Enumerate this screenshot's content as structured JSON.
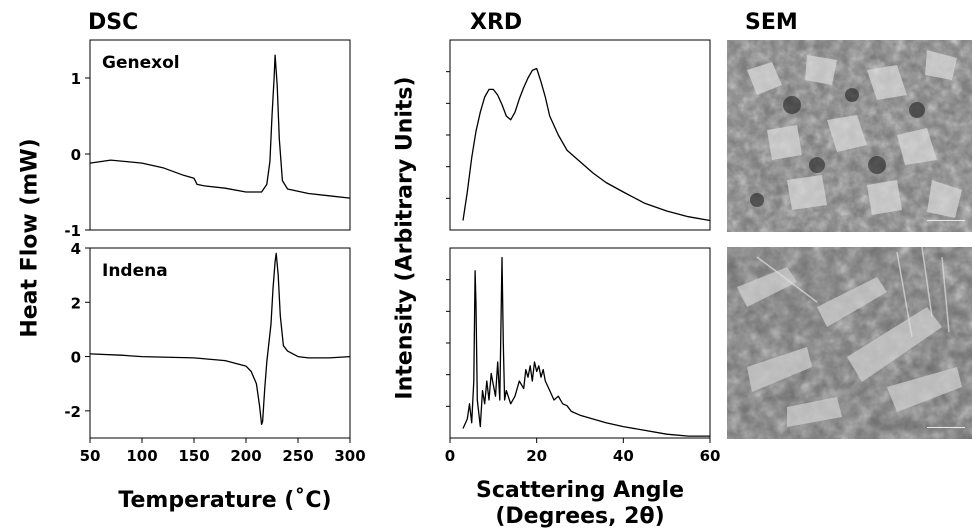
{
  "titles": {
    "dsc": "DSC",
    "xrd": "XRD",
    "sem": "SEM"
  },
  "dsc_ylabel": "Heat Flow (mW)",
  "dsc_xlabel": "Temperature (˚C)",
  "xrd_ylabel": "Intensity (Arbitrary Units)",
  "xrd_xlabel_line1": "Scattering Angle",
  "xrd_xlabel_line2": "(Degrees, 2θ)",
  "chart_data": [
    {
      "type": "line",
      "panel": "DSC top",
      "series": [
        {
          "name": "Genexol",
          "x": [
            50,
            70,
            100,
            120,
            140,
            150,
            153,
            160,
            180,
            200,
            215,
            220,
            223,
            225,
            227,
            228,
            230,
            232,
            235,
            240,
            260,
            280,
            300
          ],
          "y": [
            -0.12,
            -0.08,
            -0.12,
            -0.18,
            -0.28,
            -0.32,
            -0.4,
            -0.42,
            -0.45,
            -0.5,
            -0.5,
            -0.4,
            -0.1,
            0.5,
            1.0,
            1.3,
            0.9,
            0.2,
            -0.35,
            -0.46,
            -0.52,
            -0.55,
            -0.58
          ]
        }
      ],
      "xlim": [
        50,
        300
      ],
      "ylim": [
        -1,
        1.5
      ],
      "yticks": [
        -1,
        0,
        1
      ],
      "ylabel": "Heat Flow (mW)"
    },
    {
      "type": "line",
      "panel": "DSC bottom",
      "series": [
        {
          "name": "Indena",
          "x": [
            50,
            80,
            100,
            150,
            180,
            200,
            205,
            210,
            213,
            215,
            216,
            218,
            220,
            222,
            224,
            226,
            228,
            229,
            231,
            233,
            236,
            240,
            250,
            260,
            280,
            300
          ],
          "y": [
            0.1,
            0.05,
            0,
            -0.05,
            -0.15,
            -0.35,
            -0.55,
            -1.0,
            -1.8,
            -2.5,
            -2.4,
            -1.2,
            -0.2,
            0.5,
            1.2,
            2.5,
            3.5,
            3.8,
            3.0,
            1.5,
            0.4,
            0.2,
            0.0,
            -0.05,
            -0.05,
            0.0
          ]
        }
      ],
      "xlim": [
        50,
        300
      ],
      "ylim": [
        -3,
        4
      ],
      "xticks": [
        50,
        100,
        150,
        200,
        250,
        300
      ],
      "yticks": [
        -2,
        0,
        2,
        4
      ],
      "xlabel": "Temperature (˚C)"
    },
    {
      "type": "line",
      "panel": "XRD top",
      "series": [
        {
          "name": "Genexol",
          "x": [
            3,
            4,
            5,
            6,
            7,
            8,
            9,
            10,
            11,
            12,
            13,
            14,
            15,
            16,
            17,
            18,
            19,
            20,
            21,
            22,
            23,
            25,
            27,
            30,
            33,
            36,
            40,
            45,
            50,
            55,
            60
          ],
          "y": [
            0.05,
            0.2,
            0.38,
            0.52,
            0.62,
            0.7,
            0.74,
            0.74,
            0.71,
            0.66,
            0.6,
            0.58,
            0.62,
            0.69,
            0.75,
            0.8,
            0.84,
            0.85,
            0.78,
            0.7,
            0.6,
            0.5,
            0.42,
            0.36,
            0.3,
            0.25,
            0.2,
            0.14,
            0.1,
            0.07,
            0.05
          ]
        }
      ],
      "xlim": [
        0,
        60
      ],
      "ylim": [
        0,
        1
      ]
    },
    {
      "type": "line",
      "panel": "XRD bottom",
      "series": [
        {
          "name": "Indena",
          "x": [
            3,
            4,
            4.5,
            5,
            5.5,
            5.8,
            6,
            6.3,
            7,
            7.5,
            8,
            8.5,
            9,
            9.5,
            10,
            10.5,
            11,
            11.5,
            12,
            12.3,
            12.6,
            13,
            14,
            15,
            16,
            17,
            17.5,
            18,
            18.5,
            19,
            19.5,
            20,
            20.5,
            21,
            21.5,
            22,
            23,
            24,
            25,
            26,
            27,
            28,
            30,
            33,
            36,
            40,
            45,
            50,
            55,
            60
          ],
          "y": [
            0.05,
            0.1,
            0.18,
            0.08,
            0.3,
            0.88,
            0.7,
            0.2,
            0.06,
            0.25,
            0.18,
            0.3,
            0.2,
            0.34,
            0.28,
            0.22,
            0.4,
            0.2,
            0.95,
            0.5,
            0.2,
            0.25,
            0.18,
            0.22,
            0.3,
            0.26,
            0.36,
            0.32,
            0.38,
            0.3,
            0.4,
            0.35,
            0.38,
            0.32,
            0.36,
            0.3,
            0.25,
            0.2,
            0.22,
            0.18,
            0.17,
            0.14,
            0.12,
            0.1,
            0.08,
            0.06,
            0.04,
            0.02,
            0.01,
            0.01
          ]
        }
      ],
      "xlim": [
        0,
        60
      ],
      "ylim": [
        0,
        1
      ],
      "xticks": [
        0,
        20,
        40,
        60
      ]
    }
  ]
}
